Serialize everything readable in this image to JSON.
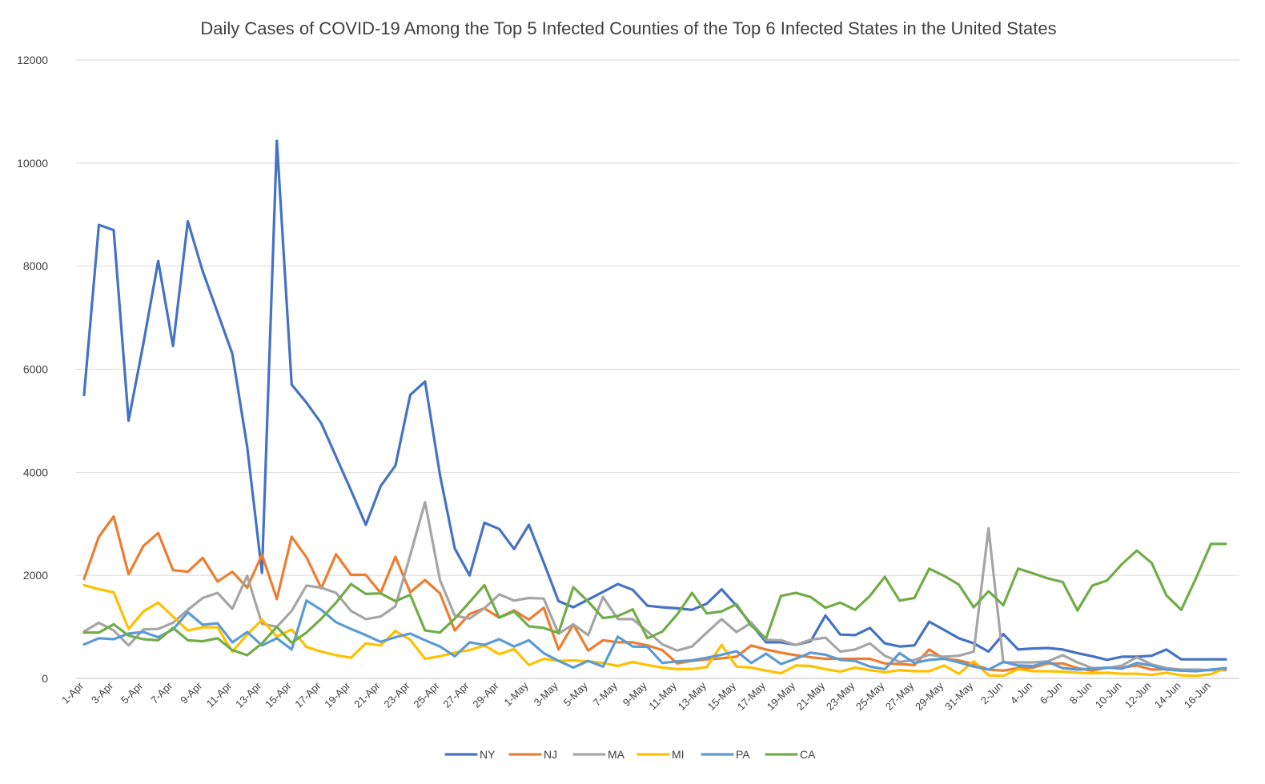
{
  "chart_data": {
    "type": "line",
    "title": "Daily Cases of COVID-19 Among the Top 5 Infected Counties of the Top 6 Infected States in the United States",
    "xlabel": "",
    "ylabel": "",
    "ylim": [
      0,
      12000
    ],
    "yticks": [
      0,
      2000,
      4000,
      6000,
      8000,
      10000,
      12000
    ],
    "grid": true,
    "legend_position": "bottom",
    "x": [
      "1-Apr",
      "2-Apr",
      "3-Apr",
      "4-Apr",
      "5-Apr",
      "6-Apr",
      "7-Apr",
      "8-Apr",
      "9-Apr",
      "10-Apr",
      "11-Apr",
      "12-Apr",
      "13-Apr",
      "14-Apr",
      "15-Apr",
      "16-Apr",
      "17-Apr",
      "18-Apr",
      "19-Apr",
      "20-Apr",
      "21-Apr",
      "22-Apr",
      "23-Apr",
      "24-Apr",
      "25-Apr",
      "26-Apr",
      "27-Apr",
      "28-Apr",
      "29-Apr",
      "30-Apr",
      "1-May",
      "2-May",
      "3-May",
      "4-May",
      "5-May",
      "6-May",
      "7-May",
      "8-May",
      "9-May",
      "10-May",
      "11-May",
      "12-May",
      "13-May",
      "14-May",
      "15-May",
      "16-May",
      "17-May",
      "18-May",
      "19-May",
      "20-May",
      "21-May",
      "22-May",
      "23-May",
      "24-May",
      "25-May",
      "26-May",
      "27-May",
      "28-May",
      "29-May",
      "30-May",
      "31-May",
      "1-Jun",
      "2-Jun",
      "3-Jun",
      "4-Jun",
      "5-Jun",
      "6-Jun",
      "7-Jun",
      "8-Jun",
      "9-Jun",
      "10-Jun",
      "11-Jun",
      "12-Jun",
      "13-Jun",
      "14-Jun",
      "15-Jun",
      "16-Jun",
      "17-Jun"
    ],
    "x_tick_labels": [
      "1-Apr",
      "3-Apr",
      "5-Apr",
      "7-Apr",
      "9-Apr",
      "11-Apr",
      "13-Apr",
      "15-Apr",
      "17-Apr",
      "19-Apr",
      "21-Apr",
      "23-Apr",
      "25-Apr",
      "27-Apr",
      "29-Apr",
      "1-May",
      "3-May",
      "5-May",
      "7-May",
      "9-May",
      "11-May",
      "13-May",
      "15-May",
      "17-May",
      "19-May",
      "21-May",
      "23-May",
      "25-May",
      "27-May",
      "29-May",
      "31-May",
      "2-Jun",
      "4-Jun",
      "6-Jun",
      "8-Jun",
      "10-Jun",
      "12-Jun",
      "14-Jun",
      "16-Jun"
    ],
    "series": [
      {
        "name": "NY",
        "color": "#4472C4",
        "values": [
          5500,
          8800,
          8700,
          5000,
          6500,
          8100,
          6450,
          8870,
          7900,
          7100,
          6300,
          4500,
          2050,
          10430,
          5700,
          5350,
          4950,
          4300,
          3650,
          2980,
          3730,
          4130,
          5500,
          5760,
          3950,
          2520,
          2000,
          3020,
          2900,
          2510,
          2980,
          2250,
          1500,
          1380,
          1530,
          1680,
          1830,
          1720,
          1410,
          1380,
          1360,
          1330,
          1450,
          1730,
          1410,
          1050,
          700,
          700,
          650,
          720,
          1220,
          850,
          840,
          980,
          680,
          620,
          640,
          1100,
          940,
          780,
          680,
          520,
          860,
          560,
          580,
          590,
          560,
          490,
          430,
          360,
          420,
          420,
          440,
          560,
          370,
          370,
          370,
          370
        ]
      },
      {
        "name": "NJ",
        "color": "#ED7D31",
        "values": [
          1930,
          2750,
          3140,
          2020,
          2570,
          2820,
          2100,
          2070,
          2340,
          1880,
          2070,
          1760,
          2400,
          1540,
          2750,
          2350,
          1750,
          2410,
          2010,
          2010,
          1660,
          2360,
          1670,
          1910,
          1650,
          930,
          1250,
          1360,
          1180,
          1320,
          1140,
          1370,
          560,
          1050,
          540,
          740,
          700,
          700,
          640,
          550,
          290,
          340,
          370,
          390,
          420,
          640,
          560,
          500,
          450,
          410,
          380,
          380,
          380,
          380,
          290,
          280,
          260,
          560,
          380,
          350,
          280,
          170,
          150,
          200,
          210,
          290,
          290,
          200,
          150,
          210,
          210,
          250,
          170,
          180,
          150,
          150,
          160,
          160
        ]
      },
      {
        "name": "MA",
        "color": "#A5A5A5",
        "values": [
          910,
          1080,
          930,
          640,
          950,
          960,
          1080,
          1330,
          1560,
          1660,
          1350,
          1990,
          1060,
          1000,
          1310,
          1800,
          1760,
          1660,
          1310,
          1150,
          1200,
          1400,
          2390,
          3420,
          1910,
          1220,
          1160,
          1360,
          1630,
          1510,
          1560,
          1550,
          870,
          1050,
          840,
          1580,
          1150,
          1150,
          910,
          660,
          540,
          620,
          890,
          1150,
          900,
          1080,
          750,
          740,
          650,
          750,
          790,
          520,
          560,
          680,
          440,
          320,
          360,
          460,
          420,
          440,
          520,
          2910,
          310,
          310,
          310,
          330,
          450,
          310,
          200,
          200,
          250,
          410,
          270,
          200,
          170,
          170,
          160,
          170
        ]
      },
      {
        "name": "MI",
        "color": "#FFC000",
        "values": [
          1810,
          1730,
          1670,
          960,
          1300,
          1470,
          1200,
          930,
          990,
          990,
          520,
          850,
          1140,
          810,
          950,
          610,
          520,
          450,
          400,
          680,
          640,
          920,
          750,
          380,
          430,
          500,
          550,
          640,
          470,
          570,
          260,
          380,
          340,
          350,
          330,
          300,
          240,
          320,
          260,
          210,
          180,
          180,
          220,
          650,
          230,
          210,
          150,
          100,
          250,
          240,
          180,
          130,
          210,
          160,
          120,
          160,
          140,
          140,
          250,
          90,
          330,
          60,
          50,
          180,
          140,
          140,
          130,
          110,
          100,
          110,
          90,
          90,
          70,
          110,
          60,
          50,
          80,
          200
        ]
      },
      {
        "name": "PA",
        "color": "#5B9BD5",
        "values": [
          660,
          780,
          760,
          870,
          900,
          800,
          950,
          1280,
          1040,
          1070,
          700,
          900,
          640,
          780,
          560,
          1510,
          1330,
          1090,
          960,
          840,
          710,
          800,
          870,
          740,
          620,
          430,
          700,
          650,
          760,
          620,
          740,
          490,
          340,
          210,
          340,
          230,
          810,
          620,
          610,
          300,
          330,
          350,
          400,
          460,
          530,
          300,
          480,
          280,
          380,
          500,
          460,
          360,
          340,
          230,
          180,
          490,
          300,
          360,
          380,
          310,
          230,
          170,
          320,
          250,
          240,
          320,
          200,
          170,
          190,
          210,
          190,
          300,
          250,
          170,
          150,
          140,
          170,
          200
        ]
      },
      {
        "name": "CA",
        "color": "#70AD47",
        "values": [
          890,
          890,
          1050,
          830,
          760,
          740,
          980,
          740,
          720,
          780,
          550,
          450,
          680,
          1000,
          690,
          890,
          1160,
          1470,
          1830,
          1640,
          1650,
          1500,
          1620,
          930,
          890,
          1160,
          1480,
          1810,
          1180,
          1300,
          1010,
          980,
          880,
          1770,
          1490,
          1170,
          1210,
          1340,
          780,
          910,
          1240,
          1660,
          1260,
          1300,
          1440,
          1020,
          780,
          1600,
          1660,
          1580,
          1370,
          1470,
          1330,
          1600,
          1970,
          1510,
          1560,
          2130,
          1990,
          1820,
          1380,
          1690,
          1420,
          2130,
          2040,
          1940,
          1870,
          1320,
          1800,
          1900,
          2220,
          2480,
          2240,
          1610,
          1330,
          1950,
          2610,
          2610
        ]
      }
    ]
  }
}
